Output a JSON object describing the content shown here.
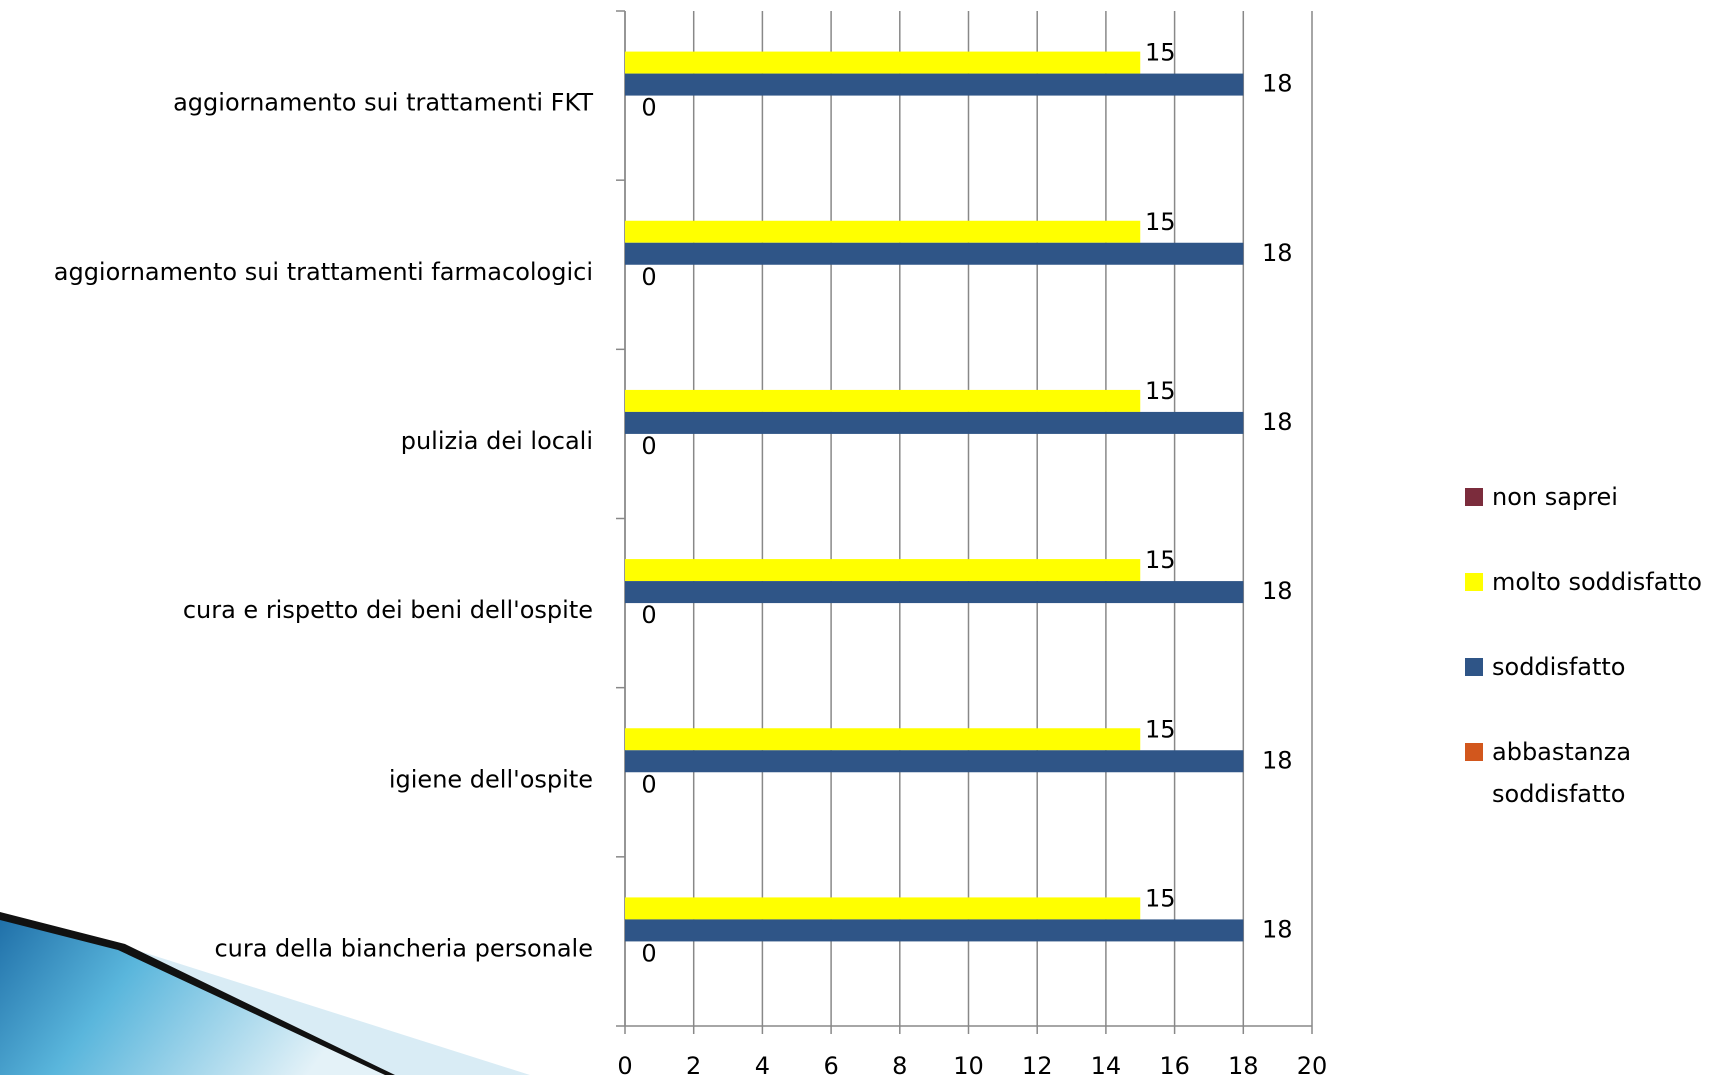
{
  "chart_data": {
    "type": "bar",
    "orientation": "horizontal",
    "categories": [
      "aggiornamento sui trattamenti FKT",
      "aggiornamento sui trattamenti farmacologici",
      "pulizia dei locali",
      "cura e rispetto dei beni dell'ospite",
      "igiene dell'ospite",
      "cura della biancheria personale"
    ],
    "series": [
      {
        "name": "non saprei",
        "color": "#7b2c3c",
        "values": [
          null,
          null,
          null,
          null,
          null,
          null
        ]
      },
      {
        "name": "molto soddisfatto",
        "color": "#ffff00",
        "values": [
          15,
          15,
          15,
          15,
          15,
          15
        ]
      },
      {
        "name": "soddisfatto",
        "color": "#2f5587",
        "values": [
          18,
          18,
          18,
          18,
          18,
          18
        ]
      },
      {
        "name": "abbastanza soddisfatto",
        "color": "#d2571d",
        "values": [
          0,
          0,
          0,
          0,
          0,
          0
        ]
      }
    ],
    "xlim": [
      0,
      20
    ],
    "xticks": [
      0,
      2,
      4,
      6,
      8,
      10,
      12,
      14,
      16,
      18,
      20
    ],
    "grid": true,
    "legend": "right"
  }
}
